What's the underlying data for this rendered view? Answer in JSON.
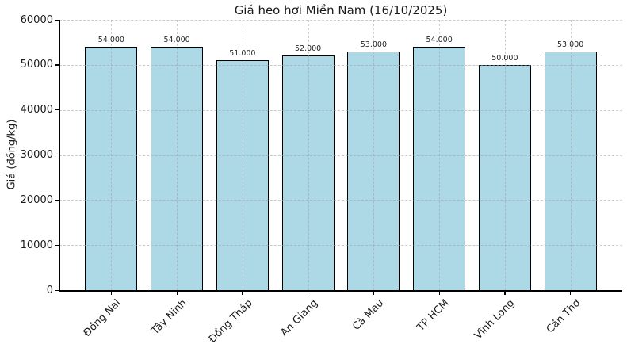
{
  "title": "Giá heo hơi Miền Nam (16/10/2025)",
  "chart_data": {
    "type": "bar",
    "title": "Giá heo hơi Miền Nam (16/10/2025)",
    "xlabel": "",
    "ylabel": "Giá (đồng/kg)",
    "categories": [
      "Đồng Nai",
      "Tây Ninh",
      "Đồng Tháp",
      "An Giang",
      "Cà Mau",
      "TP HCM",
      "Vĩnh Long",
      "Cần Thơ"
    ],
    "values": [
      54000,
      54000,
      51000,
      52000,
      53000,
      54000,
      50000,
      53000
    ],
    "value_labels": [
      "54.000",
      "54.000",
      "51.000",
      "52.000",
      "53.000",
      "54.000",
      "50.000",
      "53.000"
    ],
    "ylim": [
      0,
      60000
    ],
    "yticks": [
      0,
      10000,
      20000,
      30000,
      40000,
      50000,
      60000
    ],
    "grid": "dashed, horizontal and vertical, drawn over bars",
    "legend_position": "none",
    "colors": {
      "bar_fill": "#ADD8E6",
      "bar_edge": "#000000",
      "grid": "#c8c8c8",
      "text": "#1a1a1a",
      "background": "#ffffff"
    }
  }
}
